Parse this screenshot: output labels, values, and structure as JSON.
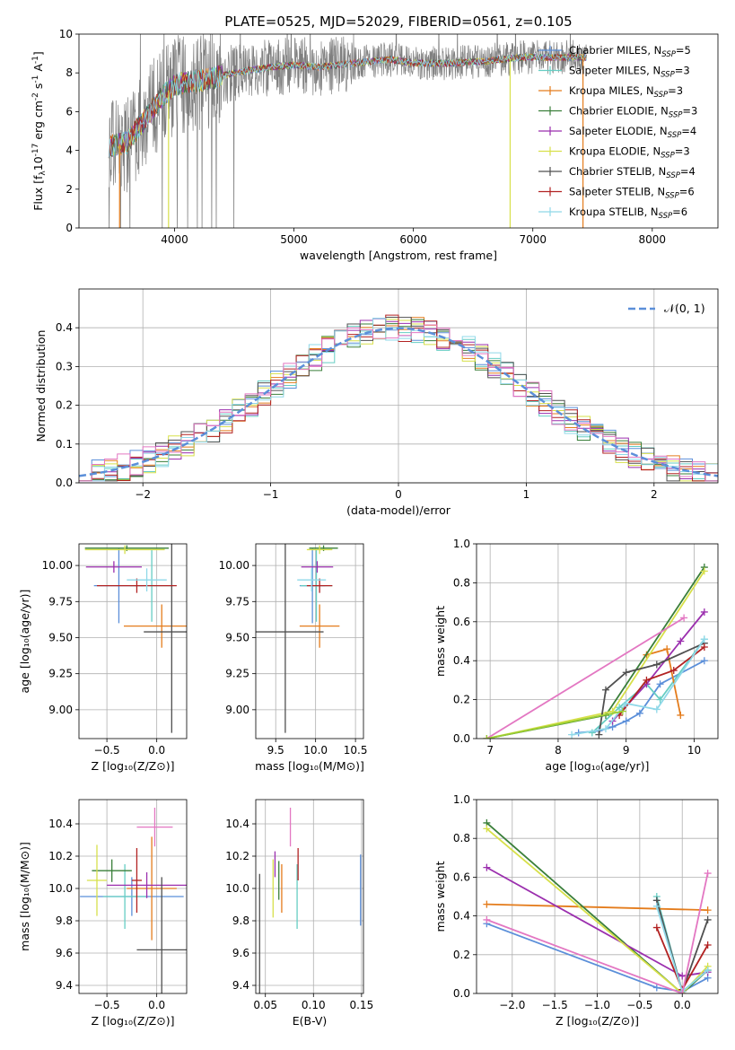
{
  "title": "PLATE=0525, MJD=52029, FIBERID=0561, z=0.105",
  "colors": {
    "Chabrier MILES": "#5b8fd9",
    "Salpeter MILES": "#66cdc3",
    "Kroupa MILES": "#e47c1c",
    "Chabrier ELODIE": "#3a7f3a",
    "Salpeter ELODIE": "#9b2fae",
    "Kroupa ELODIE": "#d7e04a",
    "Chabrier STELIB": "#505050",
    "Salpeter STELIB": "#b22222",
    "Kroupa STELIB": "#8fd8e8",
    "extra_pink": "#e377c2",
    "extra_lime": "#9acd32"
  },
  "chart_data": [
    {
      "id": "spectrum",
      "type": "line",
      "xlabel": "wavelength [Angstrom, rest frame]",
      "ylabel_parts": [
        "Flux [f",
        "λ",
        "10",
        "-17",
        " erg cm",
        "-2",
        " s",
        "-1",
        " A",
        "-1",
        "]"
      ],
      "xlim": [
        3200,
        8550
      ],
      "ylim": [
        0,
        10
      ],
      "xticks": [
        4000,
        5000,
        6000,
        7000,
        8000
      ],
      "yticks": [
        0,
        2,
        4,
        6,
        8,
        10
      ],
      "data_range_x": [
        3450,
        7450
      ],
      "continuum": {
        "x": [
          3450,
          3600,
          3700,
          3800,
          3900,
          4000,
          4100,
          4300,
          4500,
          4800,
          5000,
          5200,
          5500,
          5800,
          6000,
          6300,
          6600,
          6900,
          7200,
          7450
        ],
        "y": [
          4.2,
          4.4,
          5.2,
          6.0,
          6.8,
          7.4,
          7.5,
          7.7,
          8.0,
          8.3,
          8.4,
          8.3,
          8.5,
          8.7,
          8.5,
          8.5,
          8.6,
          8.8,
          8.8,
          8.8
        ]
      },
      "legend": [
        {
          "label": "Chabrier MILES",
          "n": 5
        },
        {
          "label": "Salpeter MILES",
          "n": 3
        },
        {
          "label": "Kroupa MILES",
          "n": 3
        },
        {
          "label": "Chabrier ELODIE",
          "n": 3
        },
        {
          "label": "Salpeter ELODIE",
          "n": 4
        },
        {
          "label": "Kroupa ELODIE",
          "n": 3
        },
        {
          "label": "Chabrier STELIB",
          "n": 4
        },
        {
          "label": "Salpeter STELIB",
          "n": 6
        },
        {
          "label": "Kroupa STELIB",
          "n": 6
        }
      ],
      "legend_n_prefix": "N",
      "legend_n_sub": "SSP",
      "legend_placement": "upper right"
    },
    {
      "id": "residual_histogram",
      "type": "histogram",
      "xlabel": "(data-model)/error",
      "ylabel": "Normed distribution",
      "xlim": [
        -2.5,
        2.5
      ],
      "ylim": [
        0,
        0.5
      ],
      "xticks": [
        -2,
        -1,
        0,
        1,
        2
      ],
      "yticks": [
        0.0,
        0.1,
        0.2,
        0.3,
        0.4
      ],
      "bin_width": 0.1,
      "legend": "𝒩(0, 1)",
      "legend_placement": "upper right",
      "grid": true
    },
    {
      "id": "age_vs_Z",
      "type": "errorbar",
      "xlabel": "Z [log₁₀(Z/Z⊙)]",
      "ylabel": "age  [log₁₀(age/yr)]",
      "xlim": [
        -0.78,
        0.3
      ],
      "ylim": [
        8.8,
        10.15
      ],
      "xticks": [
        -0.5,
        0.0
      ],
      "yticks": [
        9.0,
        9.25,
        9.5,
        9.75,
        10.0
      ],
      "grid": true,
      "points": [
        {
          "model": "Chabrier MILES",
          "x": -0.38,
          "xerr": 0.25,
          "y": 9.86,
          "yerr": 0.26
        },
        {
          "model": "Salpeter MILES",
          "x": -0.05,
          "xerr": 0.22,
          "y": 9.86,
          "yerr": 0.25
        },
        {
          "model": "Kroupa MILES",
          "x": 0.05,
          "xerr": 0.38,
          "y": 9.58,
          "yerr": 0.15
        },
        {
          "model": "Chabrier ELODIE",
          "x": -0.3,
          "xerr": 0.42,
          "y": 10.12,
          "yerr": 0.02
        },
        {
          "model": "Salpeter ELODIE",
          "x": -0.43,
          "xerr": 0.28,
          "y": 9.99,
          "yerr": 0.04
        },
        {
          "model": "Kroupa ELODIE",
          "x": -0.32,
          "xerr": 0.4,
          "y": 10.11,
          "yerr": 0.03
        },
        {
          "model": "Chabrier STELIB",
          "x": 0.15,
          "xerr": 0.28,
          "y": 9.54,
          "yerr": 0.7
        },
        {
          "model": "Salpeter STELIB",
          "x": -0.2,
          "xerr": 0.4,
          "y": 9.86,
          "yerr": 0.05
        },
        {
          "model": "Kroupa STELIB",
          "x": -0.1,
          "xerr": 0.2,
          "y": 9.9,
          "yerr": 0.08
        }
      ]
    },
    {
      "id": "age_vs_mass",
      "type": "errorbar",
      "xlabel": "mass [log₁₀(M/M⊙)]",
      "ylabel": "",
      "xlim": [
        9.25,
        10.6
      ],
      "ylim": [
        8.8,
        10.15
      ],
      "xticks": [
        9.5,
        10.0,
        10.5
      ],
      "yticks": [
        9.0,
        9.25,
        9.5,
        9.75,
        10.0
      ],
      "grid": true,
      "points": [
        {
          "model": "Chabrier MILES",
          "x": 9.96,
          "xerr": 0.16,
          "y": 9.86,
          "yerr": 0.26
        },
        {
          "model": "Salpeter MILES",
          "x": 10.01,
          "xerr": 0.2,
          "y": 9.86,
          "yerr": 0.25
        },
        {
          "model": "Kroupa MILES",
          "x": 10.05,
          "xerr": 0.25,
          "y": 9.58,
          "yerr": 0.15
        },
        {
          "model": "Chabrier ELODIE",
          "x": 10.1,
          "xerr": 0.18,
          "y": 10.12,
          "yerr": 0.02
        },
        {
          "model": "Salpeter ELODIE",
          "x": 10.02,
          "xerr": 0.2,
          "y": 9.99,
          "yerr": 0.04
        },
        {
          "model": "Kroupa ELODIE",
          "x": 10.05,
          "xerr": 0.16,
          "y": 10.11,
          "yerr": 0.03
        },
        {
          "model": "Chabrier STELIB",
          "x": 9.62,
          "xerr": 0.48,
          "y": 9.54,
          "yerr": 0.7
        },
        {
          "model": "Salpeter STELIB",
          "x": 10.05,
          "xerr": 0.16,
          "y": 9.86,
          "yerr": 0.05
        },
        {
          "model": "Kroupa STELIB",
          "x": 9.95,
          "xerr": 0.18,
          "y": 9.9,
          "yerr": 0.08
        }
      ]
    },
    {
      "id": "massweight_vs_age",
      "type": "line",
      "xlabel": "age  [log₁₀(age/yr)]",
      "ylabel": "mass weight",
      "xlim": [
        6.8,
        10.35
      ],
      "ylim": [
        0,
        1.0
      ],
      "xticks": [
        7,
        8,
        9,
        10
      ],
      "yticks": [
        0.0,
        0.2,
        0.4,
        0.6,
        0.8,
        1.0
      ],
      "grid": true,
      "series": [
        {
          "model": "Chabrier MILES",
          "x": [
            8.3,
            8.6,
            8.8,
            9.0,
            9.2,
            9.5,
            10.15
          ],
          "y": [
            0.03,
            0.04,
            0.06,
            0.09,
            0.13,
            0.28,
            0.4
          ]
        },
        {
          "model": "Salpeter MILES",
          "x": [
            8.5,
            8.9,
            9.3,
            9.5,
            10.15
          ],
          "y": [
            0.03,
            0.16,
            0.28,
            0.2,
            0.51
          ]
        },
        {
          "model": "Kroupa MILES",
          "x": [
            9.3,
            9.6,
            9.8
          ],
          "y": [
            0.43,
            0.46,
            0.12
          ]
        },
        {
          "model": "Chabrier ELODIE",
          "x": [
            6.95,
            8.7,
            10.15
          ],
          "y": [
            0.0,
            0.12,
            0.88
          ]
        },
        {
          "model": "Salpeter ELODIE",
          "x": [
            8.8,
            9.3,
            9.8,
            10.15
          ],
          "y": [
            0.09,
            0.28,
            0.5,
            0.65
          ]
        },
        {
          "model": "Kroupa ELODIE",
          "x": [
            6.95,
            8.8,
            10.15
          ],
          "y": [
            0.0,
            0.14,
            0.86
          ]
        },
        {
          "model": "Chabrier STELIB",
          "x": [
            8.6,
            8.7,
            9.0,
            9.45,
            10.15
          ],
          "y": [
            0.02,
            0.25,
            0.34,
            0.38,
            0.49
          ]
        },
        {
          "model": "Salpeter STELIB",
          "x": [
            8.9,
            9.3,
            9.7,
            10.15
          ],
          "y": [
            0.12,
            0.3,
            0.35,
            0.47
          ]
        },
        {
          "model": "Kroupa STELIB",
          "x": [
            8.2,
            8.7,
            9.0,
            9.45,
            10.15
          ],
          "y": [
            0.02,
            0.05,
            0.18,
            0.15,
            0.51
          ]
        },
        {
          "model": "extra_pink",
          "x": [
            6.95,
            9.85
          ],
          "y": [
            0.0,
            0.62
          ]
        },
        {
          "model": "extra_lime",
          "x": [
            6.95,
            8.95
          ],
          "y": [
            0.0,
            0.14
          ]
        }
      ]
    },
    {
      "id": "mass_vs_Z",
      "type": "errorbar",
      "xlabel": "Z [log₁₀(Z/Z⊙)]",
      "ylabel": "mass [log₁₀(M/M⊙)]",
      "xlim": [
        -0.78,
        0.3
      ],
      "ylim": [
        9.35,
        10.55
      ],
      "xticks": [
        -0.5,
        0.0
      ],
      "yticks": [
        9.4,
        9.6,
        9.8,
        10.0,
        10.2,
        10.4
      ],
      "grid": true,
      "points": [
        {
          "model": "Chabrier MILES",
          "x": -0.25,
          "xerr": 0.52,
          "y": 9.95,
          "yerr": 0.12
        },
        {
          "model": "Salpeter MILES",
          "x": -0.32,
          "xerr": 0.22,
          "y": 9.95,
          "yerr": 0.2
        },
        {
          "model": "Kroupa MILES",
          "x": -0.05,
          "xerr": 0.25,
          "y": 10.0,
          "yerr": 0.32
        },
        {
          "model": "Chabrier ELODIE",
          "x": -0.45,
          "xerr": 0.2,
          "y": 10.11,
          "yerr": 0.07
        },
        {
          "model": "Salpeter ELODIE",
          "x": -0.1,
          "xerr": 0.4,
          "y": 10.02,
          "yerr": 0.08
        },
        {
          "model": "Kroupa ELODIE",
          "x": -0.6,
          "xerr": 0.1,
          "y": 10.05,
          "yerr": 0.22
        },
        {
          "model": "Chabrier STELIB",
          "x": 0.05,
          "xerr": 0.25,
          "y": 9.62,
          "yerr": 0.45
        },
        {
          "model": "Salpeter STELIB",
          "x": -0.2,
          "xerr": 0.05,
          "y": 10.05,
          "yerr": 0.2
        },
        {
          "model": "extra_pink",
          "x": -0.02,
          "xerr": 0.18,
          "y": 10.38,
          "yerr": 0.12
        }
      ]
    },
    {
      "id": "mass_vs_ebv",
      "type": "errorbar",
      "xlabel": "E(B-V)",
      "ylabel": "",
      "xlim": [
        0.04,
        0.152
      ],
      "ylim": [
        9.35,
        10.55
      ],
      "xticks": [
        0.05,
        0.1,
        0.15
      ],
      "yticks": [
        9.4,
        9.6,
        9.8,
        10.0,
        10.2,
        10.4
      ],
      "grid": true,
      "points": [
        {
          "model": "Chabrier MILES",
          "x": 0.149,
          "y": 9.99,
          "yerr": 0.22
        },
        {
          "model": "Salpeter MILES",
          "x": 0.083,
          "y": 9.95,
          "yerr": 0.2
        },
        {
          "model": "Kroupa MILES",
          "x": 0.067,
          "y": 10.0,
          "yerr": 0.15
        },
        {
          "model": "Chabrier ELODIE",
          "x": 0.064,
          "y": 10.05,
          "yerr": 0.12
        },
        {
          "model": "Salpeter ELODIE",
          "x": 0.06,
          "y": 10.15,
          "yerr": 0.08
        },
        {
          "model": "Kroupa ELODIE",
          "x": 0.058,
          "y": 10.0,
          "yerr": 0.18
        },
        {
          "model": "Chabrier STELIB",
          "x": 0.044,
          "y": 9.65,
          "yerr": 0.44
        },
        {
          "model": "Salpeter STELIB",
          "x": 0.084,
          "y": 10.15,
          "yerr": 0.1
        },
        {
          "model": "extra_pink",
          "x": 0.076,
          "y": 10.38,
          "yerr": 0.12
        }
      ]
    },
    {
      "id": "massweight_vs_Z",
      "type": "line",
      "xlabel": "Z [log₁₀(Z/Z⊙)]",
      "ylabel": "mass weight",
      "xlim": [
        -2.42,
        0.42
      ],
      "ylim": [
        0,
        1.0
      ],
      "xticks": [
        -2.0,
        -1.5,
        -1.0,
        -0.5,
        0.0
      ],
      "yticks": [
        0.0,
        0.2,
        0.4,
        0.6,
        0.8,
        1.0
      ],
      "grid": true,
      "series": [
        {
          "model": "Chabrier MILES",
          "x": [
            -2.3,
            -0.3,
            0.0,
            0.3
          ],
          "y": [
            0.36,
            0.03,
            0.01,
            0.08
          ]
        },
        {
          "model": "Salpeter MILES",
          "x": [
            -0.3,
            0.0,
            0.3
          ],
          "y": [
            0.5,
            0.01,
            0.12
          ]
        },
        {
          "model": "Kroupa MILES",
          "x": [
            -2.3,
            0.3
          ],
          "y": [
            0.46,
            0.43
          ]
        },
        {
          "model": "Chabrier ELODIE",
          "x": [
            -2.3,
            0.0,
            0.3
          ],
          "y": [
            0.88,
            0.0,
            0.12
          ]
        },
        {
          "model": "Salpeter ELODIE",
          "x": [
            -2.3,
            0.0,
            0.3
          ],
          "y": [
            0.65,
            0.09,
            0.11
          ]
        },
        {
          "model": "Kroupa ELODIE",
          "x": [
            -2.3,
            0.0,
            0.3
          ],
          "y": [
            0.85,
            0.0,
            0.14
          ]
        },
        {
          "model": "Chabrier STELIB",
          "x": [
            -0.3,
            0.0,
            0.3
          ],
          "y": [
            0.48,
            0.01,
            0.38
          ]
        },
        {
          "model": "Salpeter STELIB",
          "x": [
            -0.3,
            0.0,
            0.3
          ],
          "y": [
            0.34,
            0.02,
            0.25
          ]
        },
        {
          "model": "Kroupa STELIB",
          "x": [
            -0.3,
            0.0,
            0.3
          ],
          "y": [
            0.45,
            0.01,
            0.12
          ]
        },
        {
          "model": "extra_pink",
          "x": [
            -2.3,
            0.0,
            0.3
          ],
          "y": [
            0.38,
            0.0,
            0.62
          ]
        }
      ]
    }
  ]
}
